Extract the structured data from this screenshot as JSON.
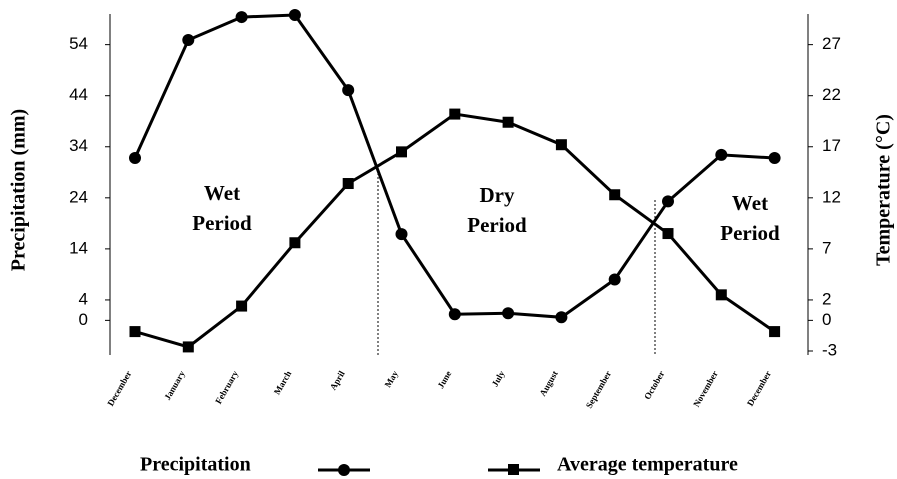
{
  "chart_data": {
    "type": "line",
    "categories": [
      "December",
      "January",
      "February",
      "March",
      "April",
      "May",
      "June",
      "July",
      "August",
      "September",
      "October",
      "November",
      "December"
    ],
    "series": [
      {
        "name": "Precipitation",
        "color": "#000000",
        "marker": "circle",
        "values": [
          31.8,
          54.9,
          59.4,
          59.8,
          45.1,
          16.9,
          1.2,
          1.4,
          0.6,
          8,
          23.3,
          32.4,
          31.8
        ]
      },
      {
        "name": "Average temperature",
        "color": "#000000",
        "marker": "square",
        "axis": "y2",
        "values": [
          -1.1,
          -2.6,
          1.4,
          7.6,
          13.4,
          16.5,
          20.2,
          19.4,
          17.2,
          12.3,
          8.5,
          2.5,
          -1.1
        ]
      }
    ],
    "y_label": "Precipitation (mm)",
    "y2_label": "Temperature (°C)",
    "ylim": [
      -6,
      60
    ],
    "yticks": [
      0,
      4,
      14,
      24,
      34,
      44,
      54
    ],
    "y2lim": [
      -3,
      30
    ],
    "y2ticks": [
      -3,
      0,
      2,
      7,
      12,
      17,
      22,
      27
    ],
    "annotations": [
      {
        "lines": [
          "Wet",
          "Period"
        ]
      },
      {
        "lines": [
          "Dry",
          "Period"
        ]
      },
      {
        "lines": [
          "Wet",
          "Period"
        ]
      }
    ],
    "grid": false,
    "legend": "bottom"
  }
}
